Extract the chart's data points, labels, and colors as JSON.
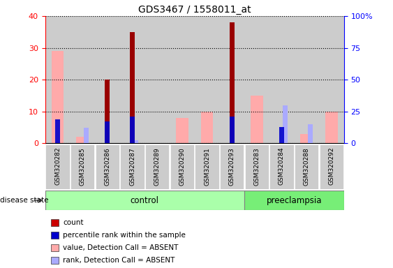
{
  "title": "GDS3467 / 1558011_at",
  "samples": [
    "GSM320282",
    "GSM320285",
    "GSM320286",
    "GSM320287",
    "GSM320289",
    "GSM320290",
    "GSM320291",
    "GSM320293",
    "GSM320283",
    "GSM320284",
    "GSM320288",
    "GSM320292"
  ],
  "groups": [
    "control",
    "control",
    "control",
    "control",
    "control",
    "control",
    "control",
    "control",
    "preeclampsia",
    "preeclampsia",
    "preeclampsia",
    "preeclampsia"
  ],
  "count": [
    0,
    0,
    20,
    35,
    0,
    0,
    0,
    38,
    0,
    0,
    0,
    0
  ],
  "percentile_rank": [
    19,
    0,
    17,
    21,
    0,
    0,
    0,
    21,
    0,
    13,
    0,
    0
  ],
  "value_absent": [
    29,
    2,
    0,
    0,
    0,
    8,
    10,
    0,
    15,
    0,
    3,
    10
  ],
  "rank_absent": [
    0,
    5,
    0,
    1,
    0,
    0,
    0,
    0,
    0,
    12,
    6,
    0
  ],
  "ylim_left": [
    0,
    40
  ],
  "ylim_right": [
    0,
    100
  ],
  "color_count": "#990000",
  "color_percentile": "#0000cc",
  "color_value_absent": "#ffaaaa",
  "color_rank_absent": "#aaaaff",
  "color_control_bg": "#aaffaa",
  "color_preeclampsia_bg": "#77ee77",
  "color_sample_bg": "#cccccc",
  "legend_items": [
    {
      "color": "#cc0000",
      "label": "count"
    },
    {
      "color": "#0000cc",
      "label": "percentile rank within the sample"
    },
    {
      "color": "#ffaaaa",
      "label": "value, Detection Call = ABSENT"
    },
    {
      "color": "#aaaaff",
      "label": "rank, Detection Call = ABSENT"
    }
  ],
  "bar_width": 0.25,
  "control_count": 8,
  "preeclampsia_count": 4
}
